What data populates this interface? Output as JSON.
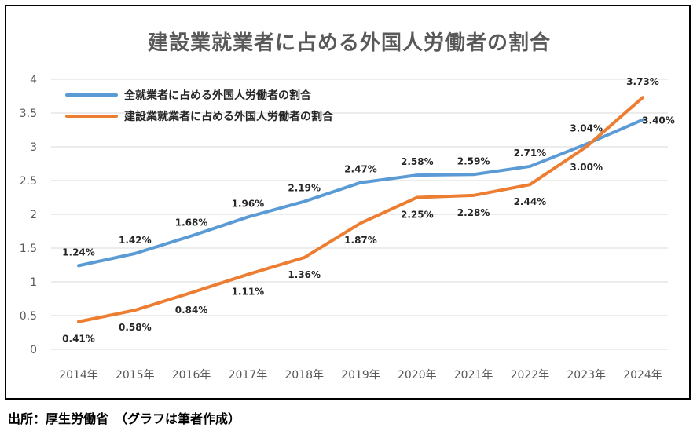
{
  "chart_data": {
    "type": "line",
    "title": "建設業就業者に占める外国人労働者の割合",
    "categories": [
      "2014年",
      "2015年",
      "2016年",
      "2017年",
      "2018年",
      "2019年",
      "2020年",
      "2021年",
      "2022年",
      "2023年",
      "2024年"
    ],
    "series": [
      {
        "name": "全就業者に占める外国人労働者の割合",
        "color": "#5B9BD5",
        "values": [
          1.24,
          1.42,
          1.68,
          1.96,
          2.19,
          2.47,
          2.58,
          2.59,
          2.71,
          3.04,
          3.4
        ],
        "labels": [
          "1.24%",
          "1.42%",
          "1.68%",
          "1.96%",
          "2.19%",
          "2.47%",
          "2.58%",
          "2.59%",
          "2.71%",
          "3.04%",
          "3.40%"
        ]
      },
      {
        "name": "建設業就業者に占める外国人労働者の割合",
        "color": "#ED7D31",
        "values": [
          0.41,
          0.58,
          0.84,
          1.11,
          1.36,
          1.87,
          2.25,
          2.28,
          2.44,
          3.0,
          3.73
        ],
        "labels": [
          "0.41%",
          "0.58%",
          "0.84%",
          "1.11%",
          "1.36%",
          "1.87%",
          "2.25%",
          "2.28%",
          "2.44%",
          "3.00%",
          "3.73%"
        ]
      }
    ],
    "yticks": [
      "0",
      "0.5",
      "1",
      "1.5",
      "2",
      "2.5",
      "3",
      "3.5",
      "4"
    ],
    "ylim": [
      0,
      4
    ],
    "grid": true,
    "legend_position": "top-left",
    "xlabel": "",
    "ylabel": ""
  },
  "source": "出所：厚生労働省　（グラフは筆者作成）"
}
